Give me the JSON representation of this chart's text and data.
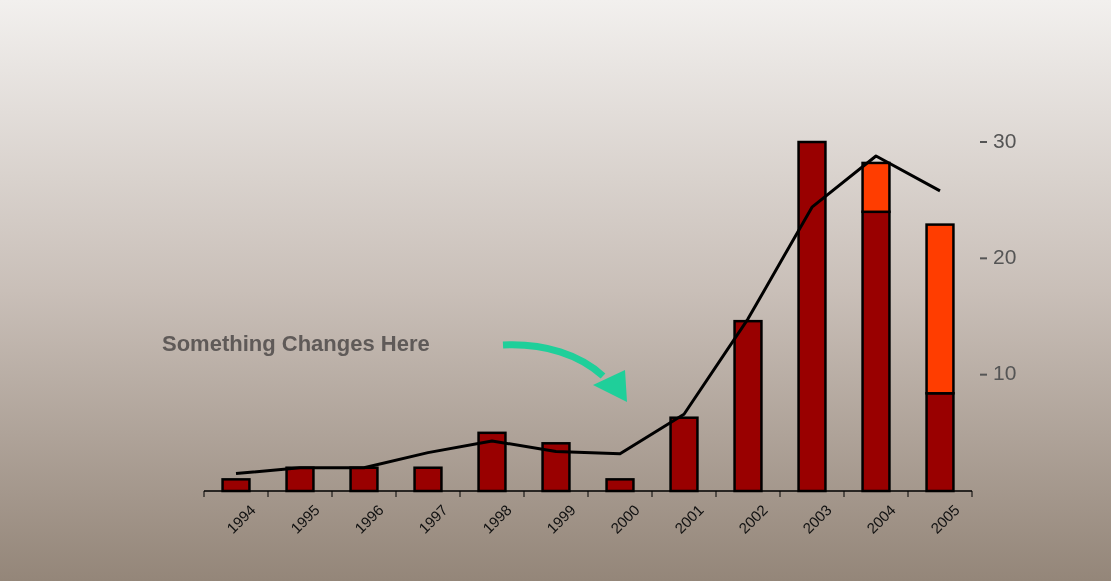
{
  "chart_data": {
    "type": "bar",
    "stacked": true,
    "categories": [
      "1994",
      "1995",
      "1996",
      "1997",
      "1998",
      "1999",
      "2000",
      "2001",
      "2002",
      "2003",
      "2004",
      "2005"
    ],
    "series": [
      {
        "color": "#990000",
        "values": [
          1.0,
          2.0,
          2.0,
          2.0,
          5.0,
          4.1,
          1.0,
          6.3,
          14.6,
          30,
          24.0,
          8.4
        ]
      },
      {
        "color": "#ff3d00",
        "values": [
          null,
          null,
          null,
          null,
          null,
          null,
          null,
          null,
          null,
          null,
          4.2,
          14.5
        ]
      },
      {
        "type": "line",
        "color": "#000000",
        "values": [
          1.5,
          2.0,
          2.0,
          3.3,
          4.3,
          3.4,
          3.2,
          6.6,
          14.8,
          24.4,
          28.8,
          25.8
        ]
      }
    ],
    "ylim": [
      0,
      30
    ],
    "yticks": [
      10,
      20,
      30
    ],
    "grid": false,
    "marker": "none",
    "line_style": "solid",
    "annotations": [
      "Something Changes Here"
    ]
  }
}
